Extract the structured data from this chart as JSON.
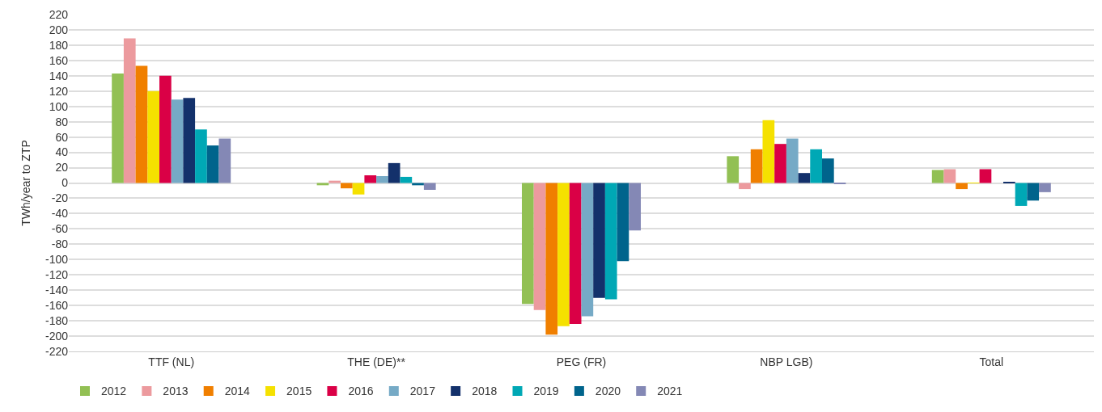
{
  "chart_data": {
    "type": "bar",
    "ylabel": "TWh/year to ZTP",
    "categories": [
      "TTF (NL)",
      "THE (DE)**",
      "PEG (FR)",
      "NBP LGB)",
      "Total"
    ],
    "series": [
      {
        "name": "2012",
        "color": "#92c054",
        "values": [
          143,
          -3,
          -158,
          35,
          17
        ]
      },
      {
        "name": "2013",
        "color": "#ec9a9e",
        "values": [
          189,
          3,
          -166,
          -8,
          18
        ]
      },
      {
        "name": "2014",
        "color": "#f07f00",
        "values": [
          153,
          -7,
          -198,
          44,
          -8
        ]
      },
      {
        "name": "2015",
        "color": "#f5e100",
        "values": [
          120,
          -15,
          -187,
          82,
          0.5
        ]
      },
      {
        "name": "2016",
        "color": "#da0046",
        "values": [
          140,
          10,
          -184,
          51,
          18
        ]
      },
      {
        "name": "2017",
        "color": "#76aac6",
        "values": [
          109,
          9,
          -174,
          58,
          0
        ]
      },
      {
        "name": "2018",
        "color": "#13316b",
        "values": [
          111,
          26,
          -150,
          13,
          1
        ]
      },
      {
        "name": "2019",
        "color": "#00a8b5",
        "values": [
          70,
          8,
          -152,
          44,
          -30
        ]
      },
      {
        "name": "2020",
        "color": "#00648c",
        "values": [
          49,
          -3,
          -102,
          32,
          -23
        ]
      },
      {
        "name": "2021",
        "color": "#8488b5",
        "values": [
          58,
          -9,
          -62,
          -1,
          -12
        ]
      }
    ],
    "ylim": [
      -220,
      220
    ],
    "yticks": [
      -220,
      -200,
      -180,
      -160,
      -140,
      -120,
      -100,
      -80,
      -60,
      -40,
      -20,
      0,
      20,
      40,
      60,
      80,
      100,
      120,
      140,
      160,
      180,
      200,
      220
    ],
    "grid": "y",
    "legend": "bottom left"
  }
}
